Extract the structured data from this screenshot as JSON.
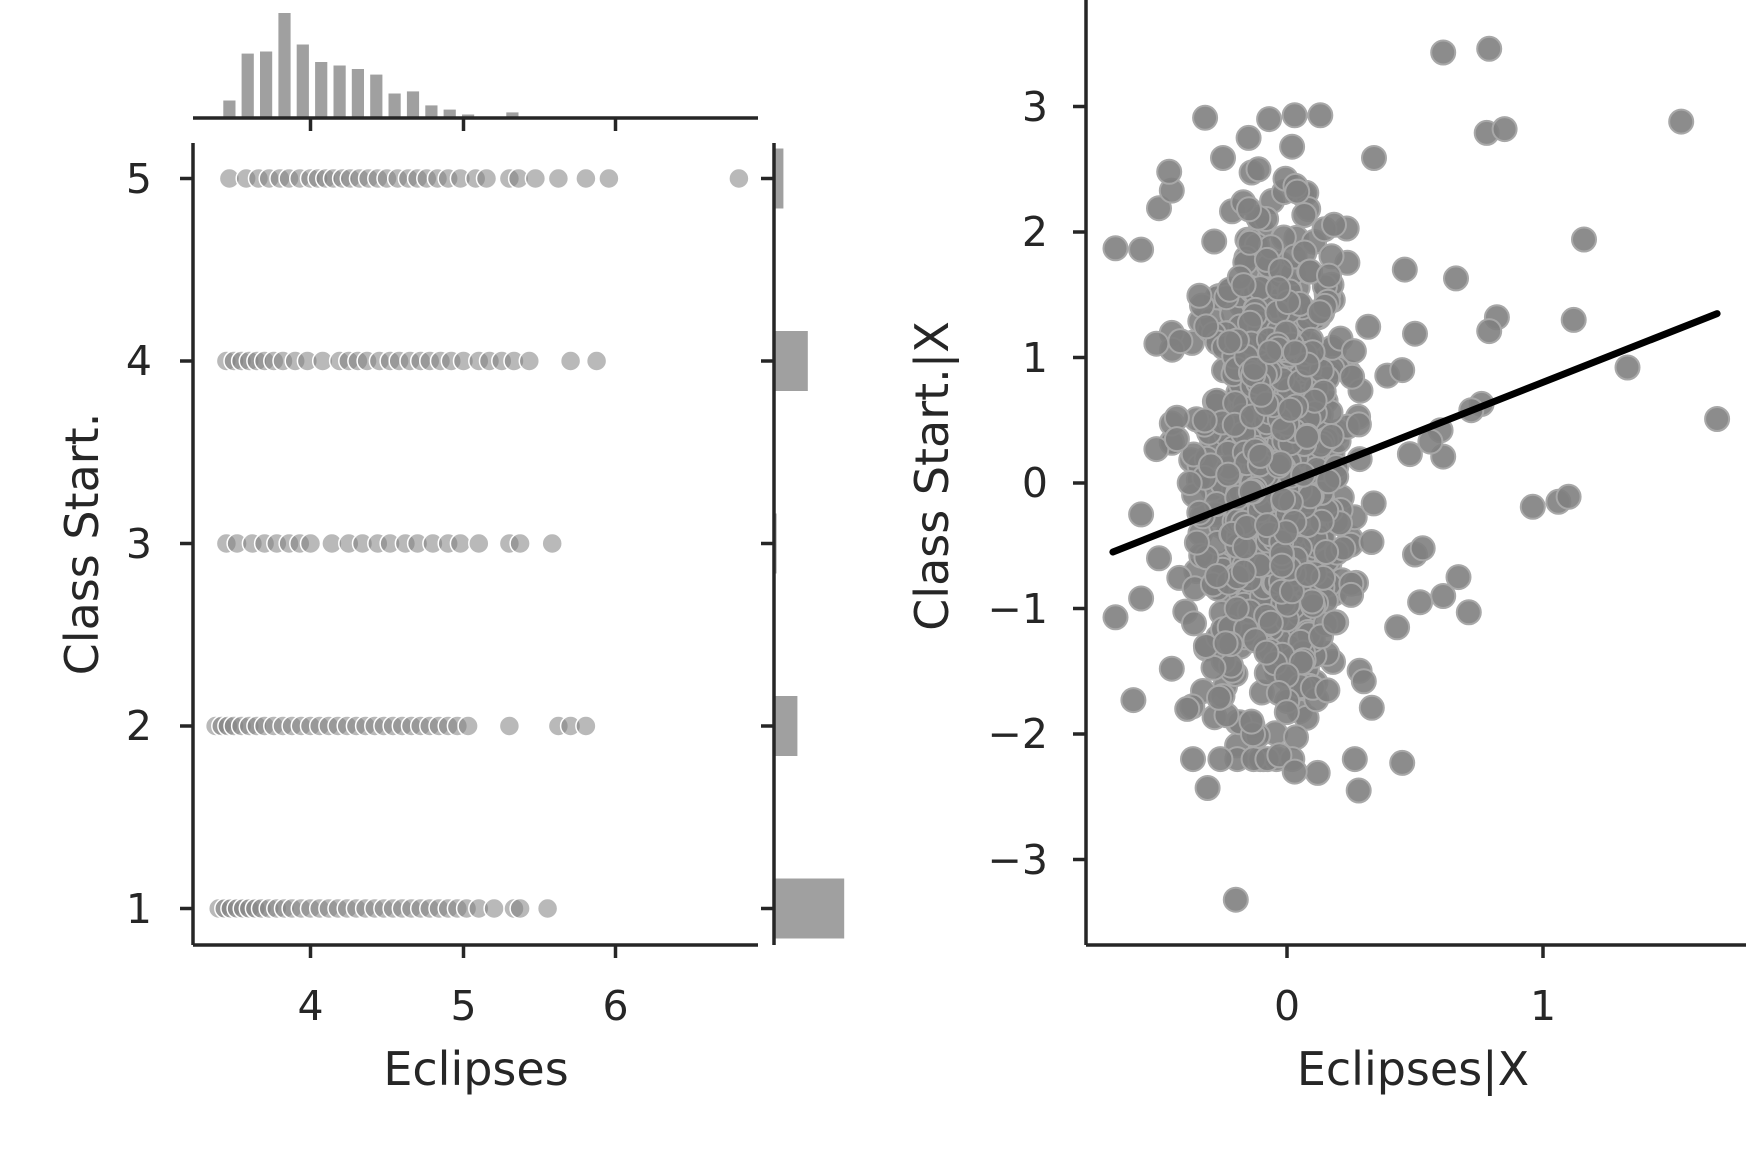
{
  "chart_data": [
    {
      "type": "scatter",
      "panel": "joint-scatter",
      "xlabel": "Eclipses",
      "ylabel": "Class Start.",
      "xlim": [
        3.25,
        7.0
      ],
      "ylim": [
        0.8,
        5.2
      ],
      "xticks": [
        4,
        5,
        6
      ],
      "yticks": [
        1,
        2,
        3,
        4,
        5
      ],
      "point_color": "#808080",
      "rows": [
        {
          "y": 5,
          "x": [
            3.47,
            3.58,
            3.66,
            3.73,
            3.8,
            3.86,
            3.93,
            4.0,
            4.05,
            4.1,
            4.15,
            4.21,
            4.26,
            4.32,
            4.38,
            4.44,
            4.5,
            4.57,
            4.64,
            4.7,
            4.76,
            4.83,
            4.9,
            4.98,
            5.08,
            5.15,
            5.3,
            5.36,
            5.47,
            5.62,
            5.8,
            5.95,
            6.8
          ]
        },
        {
          "y": 4,
          "x": [
            3.45,
            3.5,
            3.55,
            3.6,
            3.65,
            3.7,
            3.76,
            3.82,
            3.9,
            3.98,
            4.08,
            4.19,
            4.25,
            4.31,
            4.37,
            4.45,
            4.52,
            4.58,
            4.65,
            4.72,
            4.78,
            4.85,
            4.92,
            5.0,
            5.1,
            5.17,
            5.25,
            5.33,
            5.43,
            5.7,
            5.87
          ]
        },
        {
          "y": 3,
          "x": [
            3.45,
            3.52,
            3.62,
            3.7,
            3.78,
            3.86,
            3.93,
            4.0,
            4.14,
            4.25,
            4.34,
            4.44,
            4.52,
            4.62,
            4.7,
            4.8,
            4.9,
            4.98,
            5.1,
            5.3,
            5.37,
            5.58
          ]
        },
        {
          "y": 2,
          "x": [
            3.38,
            3.42,
            3.46,
            3.5,
            3.55,
            3.6,
            3.65,
            3.7,
            3.76,
            3.82,
            3.88,
            3.94,
            4.0,
            4.06,
            4.12,
            4.18,
            4.24,
            4.3,
            4.36,
            4.42,
            4.48,
            4.54,
            4.6,
            4.66,
            4.72,
            4.78,
            4.84,
            4.9,
            4.96,
            5.03,
            5.3,
            5.62,
            5.7,
            5.8
          ]
        },
        {
          "y": 1,
          "x": [
            3.4,
            3.44,
            3.48,
            3.52,
            3.56,
            3.6,
            3.64,
            3.68,
            3.73,
            3.78,
            3.83,
            3.88,
            3.94,
            4.0,
            4.06,
            4.12,
            4.18,
            4.24,
            4.3,
            4.36,
            4.42,
            4.48,
            4.54,
            4.6,
            4.66,
            4.72,
            4.78,
            4.84,
            4.9,
            4.96,
            5.02,
            5.1,
            5.2,
            5.33,
            5.37,
            5.55
          ]
        }
      ]
    },
    {
      "type": "bar",
      "panel": "marginal-x-histogram",
      "orientation": "vertical",
      "bar_color": "#a0a0a0",
      "bins": [
        {
          "x0": 3.43,
          "x1": 3.51,
          "count": 25
        },
        {
          "x0": 3.55,
          "x1": 3.63,
          "count": 92
        },
        {
          "x0": 3.67,
          "x1": 3.75,
          "count": 95
        },
        {
          "x0": 3.79,
          "x1": 3.87,
          "count": 150
        },
        {
          "x0": 3.91,
          "x1": 3.99,
          "count": 105
        },
        {
          "x0": 4.03,
          "x1": 4.11,
          "count": 80
        },
        {
          "x0": 4.15,
          "x1": 4.23,
          "count": 75
        },
        {
          "x0": 4.27,
          "x1": 4.35,
          "count": 70
        },
        {
          "x0": 4.39,
          "x1": 4.47,
          "count": 62
        },
        {
          "x0": 4.51,
          "x1": 4.59,
          "count": 35
        },
        {
          "x0": 4.63,
          "x1": 4.71,
          "count": 38
        },
        {
          "x0": 4.75,
          "x1": 4.83,
          "count": 18
        },
        {
          "x0": 4.87,
          "x1": 4.95,
          "count": 12
        },
        {
          "x0": 4.99,
          "x1": 5.07,
          "count": 5
        },
        {
          "x0": 5.28,
          "x1": 5.36,
          "count": 8
        }
      ]
    },
    {
      "type": "bar",
      "panel": "marginal-y-histogram",
      "orientation": "horizontal",
      "bar_color": "#a0a0a0",
      "categories": [
        1,
        2,
        3,
        4,
        5
      ],
      "values": [
        0.135,
        0.045,
        0.005,
        0.065,
        0.018
      ]
    },
    {
      "type": "scatter",
      "panel": "added-variable-plot",
      "xlabel": "Eclipses|X",
      "ylabel": "Class Start.|X",
      "xlim": [
        -0.79,
        1.68
      ],
      "ylim": [
        -3.72,
        3.82
      ],
      "xticks": [
        0,
        1
      ],
      "yticks": [
        -3,
        -2,
        -1,
        0,
        1,
        2,
        3
      ],
      "point_color": "#808080",
      "fit_line": {
        "x": [
          -0.68,
          1.68
        ],
        "y": [
          -0.55,
          1.35
        ],
        "color": "#000000"
      },
      "core_cluster": {
        "count": 1000,
        "x_mean": -0.05,
        "x_sd": 0.14,
        "y_mean": 0.1,
        "y_sd": 0.95
      },
      "outliers": [
        [
          0.61,
          3.43
        ],
        [
          0.79,
          3.46
        ],
        [
          1.54,
          2.88
        ],
        [
          0.78,
          2.79
        ],
        [
          0.85,
          2.82
        ],
        [
          1.16,
          1.94
        ],
        [
          0.66,
          1.63
        ],
        [
          0.82,
          1.32
        ],
        [
          0.79,
          1.21
        ],
        [
          1.12,
          1.3
        ],
        [
          1.33,
          0.92
        ],
        [
          1.68,
          0.51
        ],
        [
          0.76,
          0.63
        ],
        [
          0.72,
          0.58
        ],
        [
          0.61,
          0.21
        ],
        [
          0.6,
          0.42
        ],
        [
          0.96,
          -0.19
        ],
        [
          1.06,
          -0.15
        ],
        [
          1.1,
          -0.11
        ],
        [
          0.61,
          -0.9
        ],
        [
          0.67,
          -0.75
        ],
        [
          0.71,
          -1.03
        ],
        [
          0.52,
          -0.95
        ],
        [
          0.45,
          -2.23
        ],
        [
          0.28,
          -2.45
        ],
        [
          0.12,
          -2.31
        ],
        [
          -0.2,
          -3.32
        ],
        [
          -0.31,
          -2.43
        ],
        [
          -0.37,
          -1.78
        ],
        [
          -0.6,
          -1.73
        ],
        [
          -0.67,
          -1.07
        ],
        [
          -0.57,
          -0.92
        ],
        [
          -0.5,
          -0.6
        ],
        [
          -0.57,
          -0.25
        ],
        [
          -0.51,
          0.27
        ],
        [
          -0.43,
          0.52
        ],
        [
          -0.51,
          1.11
        ],
        [
          -0.57,
          1.86
        ],
        [
          -0.67,
          1.87
        ],
        [
          -0.5,
          2.19
        ],
        [
          -0.45,
          2.33
        ],
        [
          -0.46,
          2.48
        ],
        [
          -0.32,
          2.91
        ],
        [
          -0.25,
          2.59
        ],
        [
          -0.15,
          2.75
        ],
        [
          -0.07,
          2.9
        ],
        [
          0.03,
          2.93
        ],
        [
          0.13,
          2.93
        ],
        [
          0.02,
          2.68
        ],
        [
          0.34,
          2.59
        ],
        [
          0.46,
          1.7
        ],
        [
          0.5,
          1.19
        ],
        [
          0.45,
          0.9
        ],
        [
          0.48,
          0.23
        ],
        [
          0.5,
          -0.57
        ],
        [
          0.53,
          -0.52
        ],
        [
          0.43,
          -1.15
        ],
        [
          0.3,
          -1.58
        ],
        [
          -0.39,
          -1.8
        ],
        [
          -0.45,
          -1.48
        ],
        [
          -0.38,
          0.0
        ],
        [
          -0.43,
          0.35
        ],
        [
          0.33,
          -0.47
        ],
        [
          -0.26,
          -2.2
        ],
        [
          0.03,
          -2.3
        ],
        [
          0.56,
          0.33
        ]
      ]
    }
  ]
}
